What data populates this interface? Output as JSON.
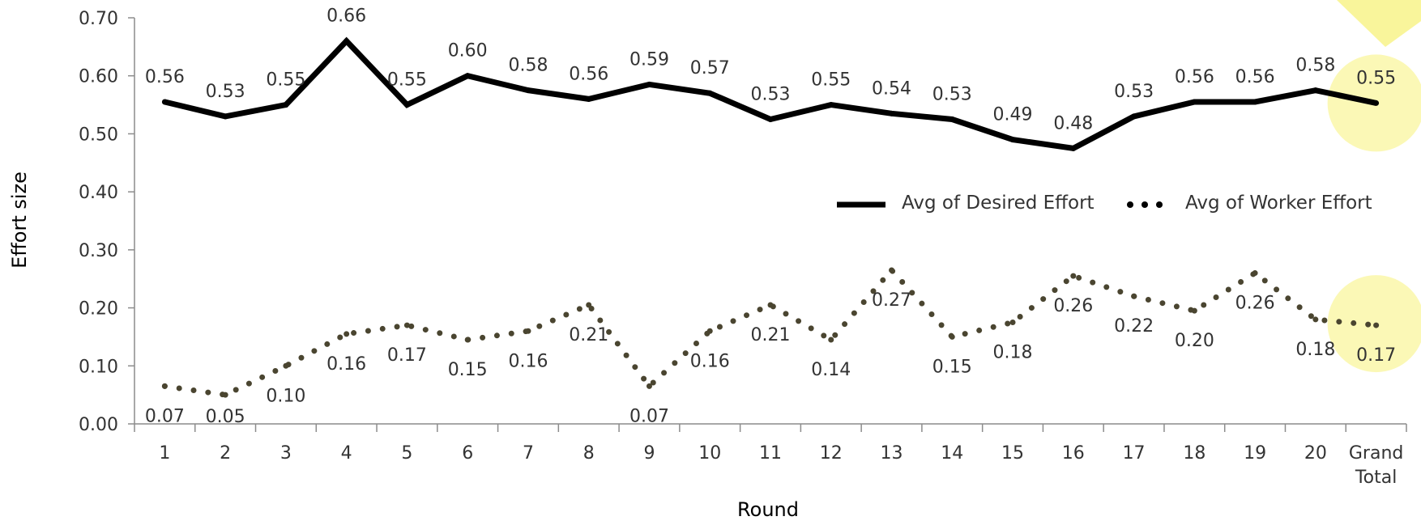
{
  "chart_data": {
    "type": "line",
    "title": "",
    "xlabel": "Round",
    "ylabel": "Effort size",
    "ylim": [
      0,
      0.7
    ],
    "y_ticks": [
      "0.00",
      "0.10",
      "0.20",
      "0.30",
      "0.40",
      "0.50",
      "0.60",
      "0.70"
    ],
    "categories": [
      "1",
      "2",
      "3",
      "4",
      "5",
      "6",
      "7",
      "8",
      "9",
      "10",
      "11",
      "12",
      "13",
      "14",
      "15",
      "16",
      "17",
      "18",
      "19",
      "20",
      "Grand Total"
    ],
    "category_lines": [
      [
        "1"
      ],
      [
        "2"
      ],
      [
        "3"
      ],
      [
        "4"
      ],
      [
        "5"
      ],
      [
        "6"
      ],
      [
        "7"
      ],
      [
        "8"
      ],
      [
        "9"
      ],
      [
        "10"
      ],
      [
        "11"
      ],
      [
        "12"
      ],
      [
        "13"
      ],
      [
        "14"
      ],
      [
        "15"
      ],
      [
        "16"
      ],
      [
        "17"
      ],
      [
        "18"
      ],
      [
        "19"
      ],
      [
        "20"
      ],
      [
        "Grand",
        "Total"
      ]
    ],
    "legend_position": "right",
    "grid": false,
    "series": [
      {
        "name": "Avg of Desired Effort",
        "style": "solid",
        "color": "#000000",
        "values": [
          0.555,
          0.53,
          0.55,
          0.66,
          0.55,
          0.6,
          0.575,
          0.56,
          0.585,
          0.57,
          0.525,
          0.55,
          0.535,
          0.525,
          0.49,
          0.475,
          0.53,
          0.555,
          0.555,
          0.575,
          0.553
        ],
        "labels": [
          "0.56",
          "0.53",
          "0.55",
          "0.66",
          "0.55",
          "0.60",
          "0.58",
          "0.56",
          "0.59",
          "0.57",
          "0.53",
          "0.55",
          "0.54",
          "0.53",
          "0.49",
          "0.48",
          "0.53",
          "0.56",
          "0.56",
          "0.58",
          "0.55"
        ]
      },
      {
        "name": "Avg of Worker Effort",
        "style": "dotted",
        "color": "#4a4530",
        "values": [
          0.065,
          0.05,
          0.1,
          0.155,
          0.17,
          0.145,
          0.16,
          0.205,
          0.065,
          0.16,
          0.205,
          0.145,
          0.265,
          0.15,
          0.175,
          0.255,
          0.22,
          0.195,
          0.26,
          0.18,
          0.17
        ],
        "labels": [
          "0.07",
          "0.05",
          "0.10",
          "0.16",
          "0.17",
          "0.15",
          "0.16",
          "0.21",
          "0.07",
          "0.16",
          "0.21",
          "0.14",
          "0.27",
          "0.15",
          "0.18",
          "0.26",
          "0.22",
          "0.20",
          "0.26",
          "0.18",
          "0.17"
        ]
      }
    ],
    "highlight_color": "#f7f27a"
  }
}
